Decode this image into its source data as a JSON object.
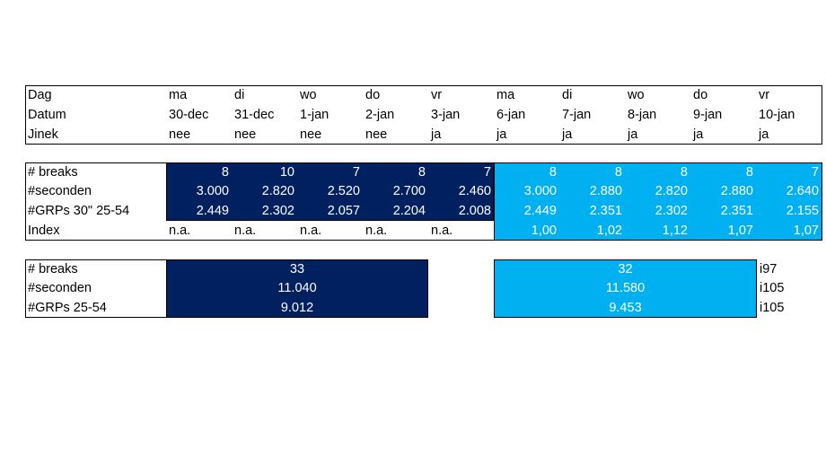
{
  "header_table": {
    "rows": [
      {
        "label": "Dag",
        "cells": [
          "ma",
          "di",
          "wo",
          "do",
          "vr",
          "ma",
          "di",
          "wo",
          "do",
          "vr"
        ]
      },
      {
        "label": "Datum",
        "cells": [
          "30-dec",
          "31-dec",
          "1-jan",
          "2-jan",
          "3-jan",
          "6-jan",
          "7-jan",
          "8-jan",
          "9-jan",
          "10-jan"
        ]
      },
      {
        "label": "Jinek",
        "cells": [
          "nee",
          "nee",
          "nee",
          "nee",
          "ja",
          "ja",
          "ja",
          "ja",
          "ja",
          "ja"
        ]
      }
    ]
  },
  "stats_table": {
    "rows": [
      {
        "label": "# breaks",
        "cells": [
          "8",
          "10",
          "7",
          "8",
          "7",
          "8",
          "8",
          "8",
          "8",
          "7"
        ]
      },
      {
        "label": "#seconden",
        "cells": [
          "3.000",
          "2.820",
          "2.520",
          "2.700",
          "2.460",
          "3.000",
          "2.880",
          "2.820",
          "2.880",
          "2.640"
        ]
      },
      {
        "label": "#GRPs 30\" 25-54",
        "cells": [
          "2.449",
          "2.302",
          "2.057",
          "2.204",
          "2.008",
          "2.449",
          "2.351",
          "2.302",
          "2.351",
          "2.155"
        ]
      },
      {
        "label": "Index",
        "cells": [
          "n.a.",
          "n.a.",
          "n.a.",
          "n.a.",
          "n.a.",
          "1,00",
          "1,02",
          "1,12",
          "1,07",
          "1,07"
        ]
      }
    ]
  },
  "totals_table": {
    "rows": [
      {
        "label": "# breaks",
        "left": "33",
        "right": "32",
        "index": "i97"
      },
      {
        "label": "#seconden",
        "left": "11.040",
        "right": "11.580",
        "index": "i105"
      },
      {
        "label": "#GRPs 25-54",
        "left": "9.012",
        "right": "9.453",
        "index": "i105"
      }
    ]
  }
}
